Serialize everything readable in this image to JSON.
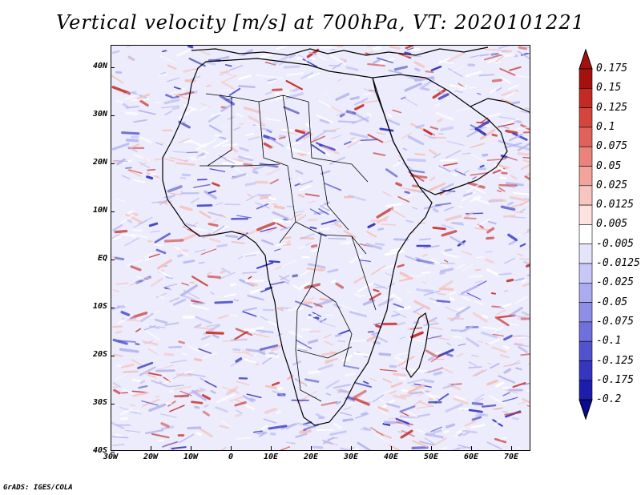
{
  "title": "Vertical velocity [m/s] at 700hPa, VT: 2020101221",
  "footer": "GrADS: IGES/COLA",
  "axes": {
    "lat_labels": [
      "40N",
      "30N",
      "20N",
      "10N",
      "EQ",
      "10S",
      "20S",
      "30S",
      "40S"
    ],
    "lon_labels": [
      "30W",
      "20W",
      "10W",
      "0",
      "10E",
      "20E",
      "30E",
      "40E",
      "50E",
      "60E",
      "70E"
    ]
  },
  "colorbar": {
    "labels": [
      "0.175",
      "0.15",
      "0.125",
      "0.1",
      "0.075",
      "0.05",
      "0.025",
      "0.0125",
      "0.005",
      "-0.005",
      "-0.0125",
      "-0.025",
      "-0.05",
      "-0.075",
      "-0.1",
      "-0.125",
      "-0.175",
      "-0.2"
    ],
    "colors": [
      "#a5120e",
      "#c22a24",
      "#d4453d",
      "#e0625a",
      "#ea837b",
      "#f2a39c",
      "#f8c5c0",
      "#fde3e0",
      "#ffffff",
      "#e4e4fb",
      "#c8c8f6",
      "#ababef",
      "#8e8ee6",
      "#7070dc",
      "#5252cf",
      "#3535bf",
      "#1d1dab",
      "#0a0a92"
    ]
  },
  "map_colors": {
    "background": "#ececfc",
    "up_light": "#f6c1bc",
    "up_strong": "#c8322c",
    "down_light": "#b8b8f2",
    "down_strong": "#3a3ac4",
    "coast": "#000000"
  }
}
